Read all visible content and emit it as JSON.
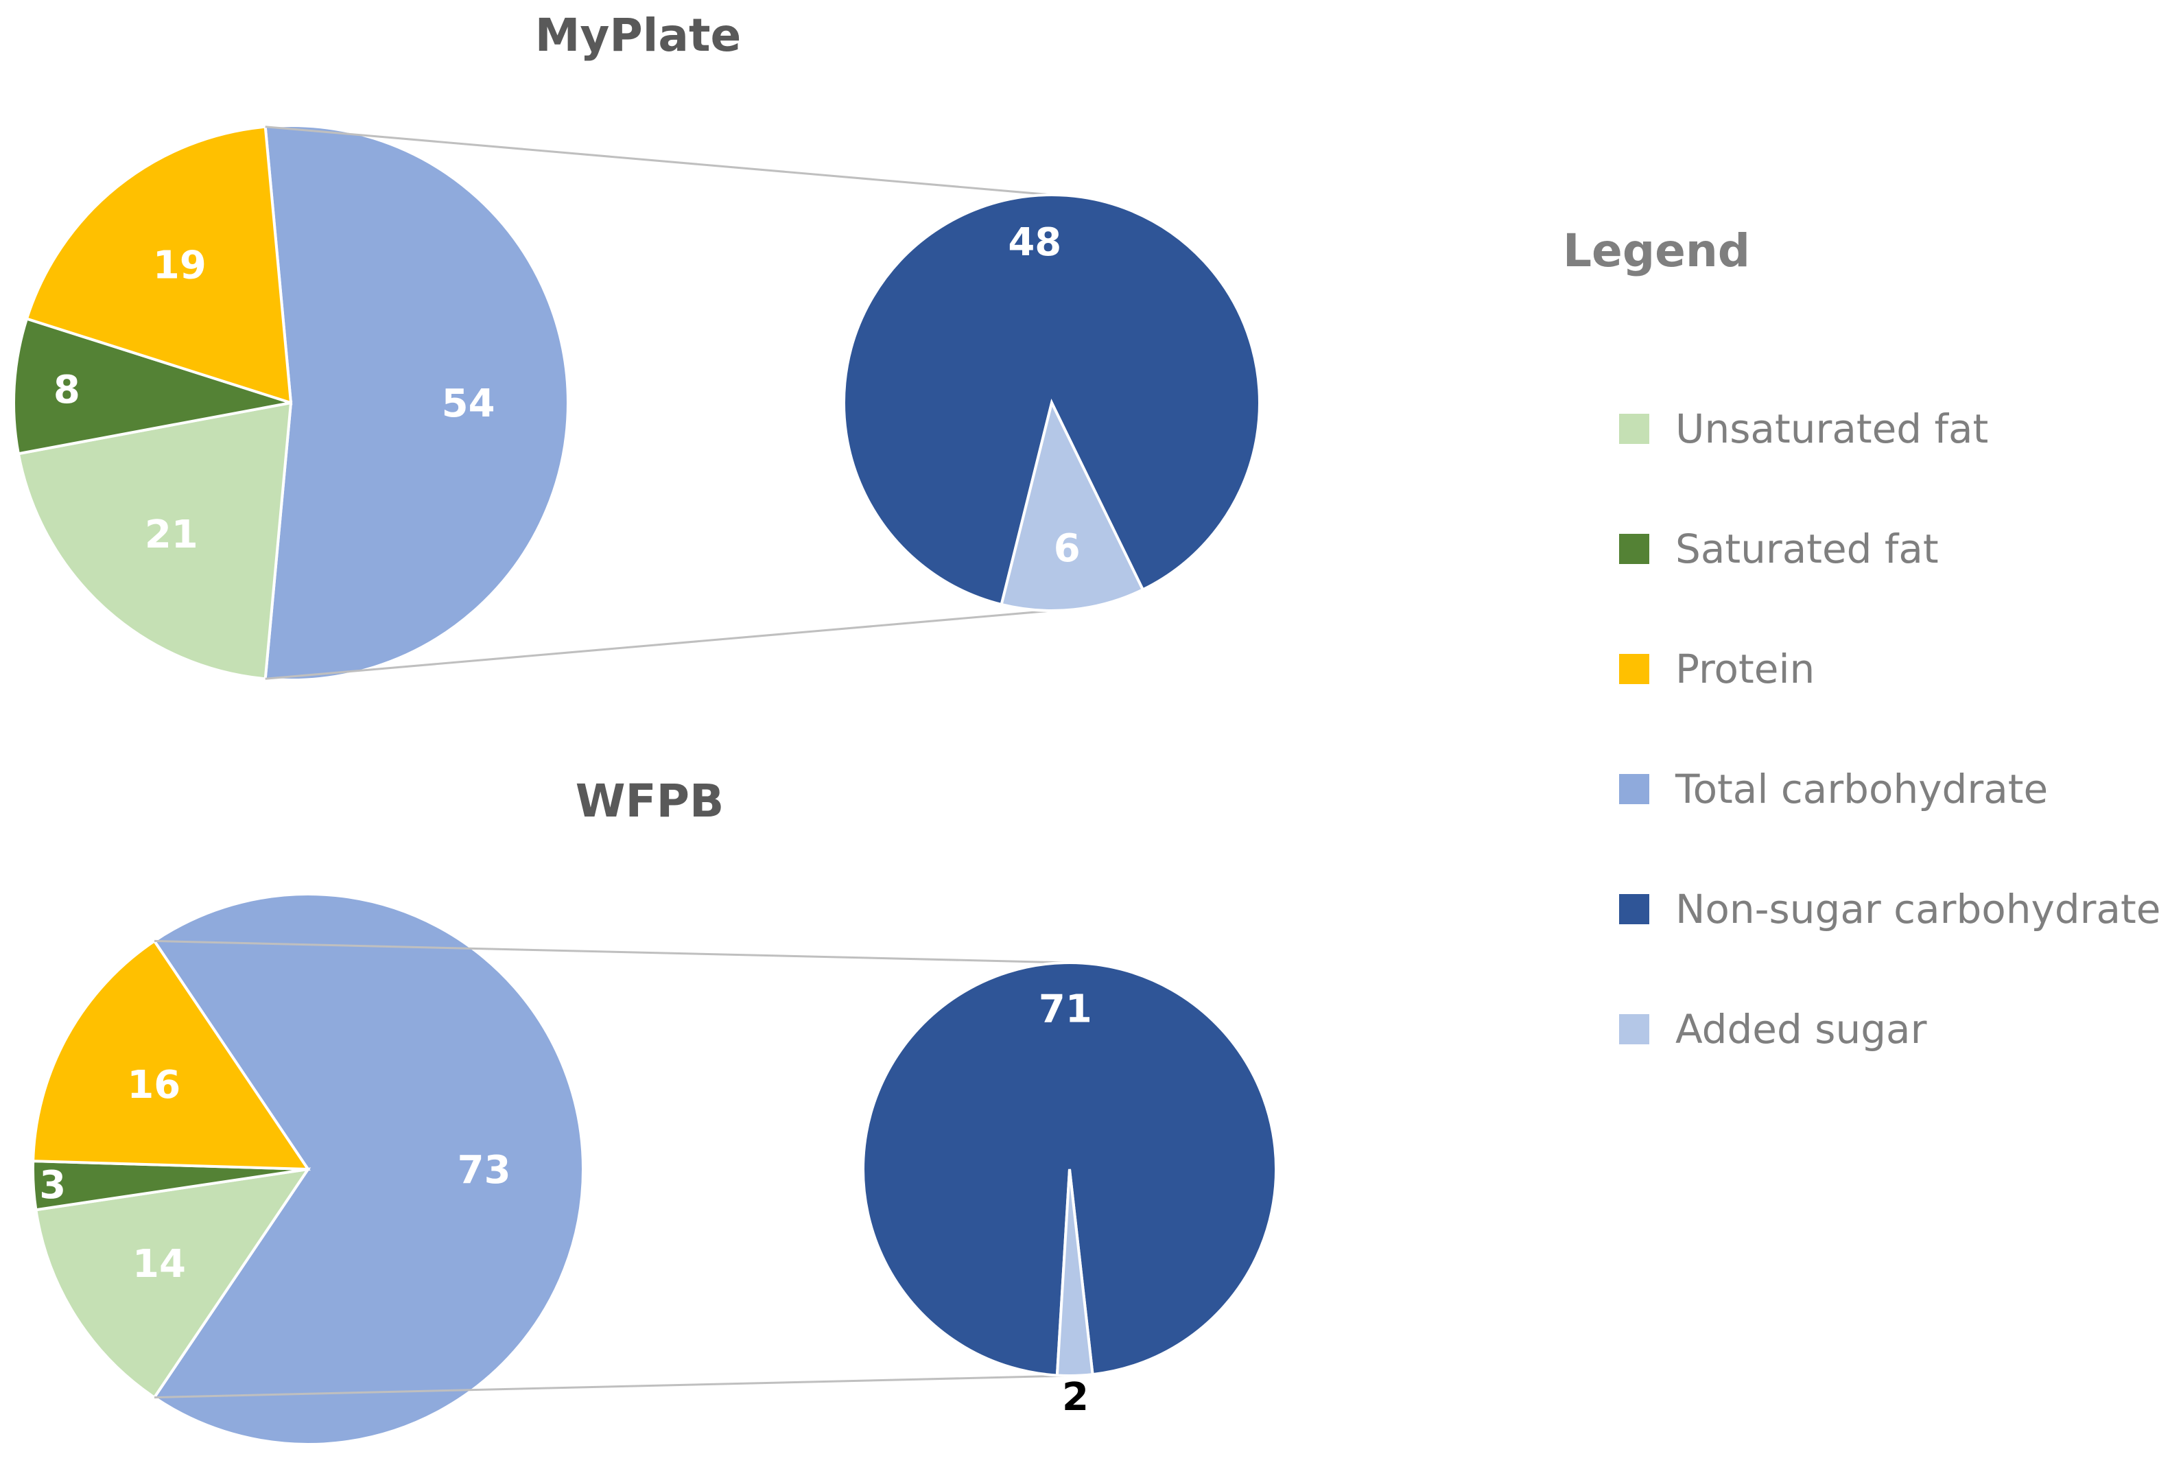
{
  "chart_data": [
    {
      "type": "pie",
      "subtype": "pie-of-pie",
      "title": "MyPlate",
      "main": [
        {
          "category": "Total carbohydrate",
          "value": 54
        },
        {
          "category": "Unsaturated fat",
          "value": 21
        },
        {
          "category": "Saturated fat",
          "value": 8
        },
        {
          "category": "Protein",
          "value": 19
        }
      ],
      "breakout": [
        {
          "category": "Non-sugar carbohydrate",
          "value": 48
        },
        {
          "category": "Added sugar",
          "value": 6
        }
      ]
    },
    {
      "type": "pie",
      "subtype": "pie-of-pie",
      "title": "WFPB",
      "main": [
        {
          "category": "Total carbohydrate",
          "value": 73
        },
        {
          "category": "Unsaturated fat",
          "value": 14
        },
        {
          "category": "Saturated fat",
          "value": 3
        },
        {
          "category": "Protein",
          "value": 16
        }
      ],
      "breakout": [
        {
          "category": "Non-sugar carbohydrate",
          "value": 71
        },
        {
          "category": "Added sugar",
          "value": 2
        }
      ]
    }
  ],
  "legend": {
    "title": "Legend",
    "position": "right",
    "items": [
      {
        "label": "Unsaturated fat",
        "color": "#c5e0b4"
      },
      {
        "label": "Saturated fat",
        "color": "#548235"
      },
      {
        "label": "Protein",
        "color": "#ffc000"
      },
      {
        "label": "Total carbohydrate",
        "color": "#8faadc"
      },
      {
        "label": "Non-sugar carbohydrate",
        "color": "#2f5597"
      },
      {
        "label": "Added sugar",
        "color": "#b4c7e7"
      }
    ]
  },
  "colors": {
    "Unsaturated fat": "#c5e0b4",
    "Saturated fat": "#548235",
    "Protein": "#ffc000",
    "Total carbohydrate": "#8faadc",
    "Non-sugar carbohydrate": "#2f5597",
    "Added sugar": "#b4c7e7",
    "connector": "#bfbfbf"
  }
}
